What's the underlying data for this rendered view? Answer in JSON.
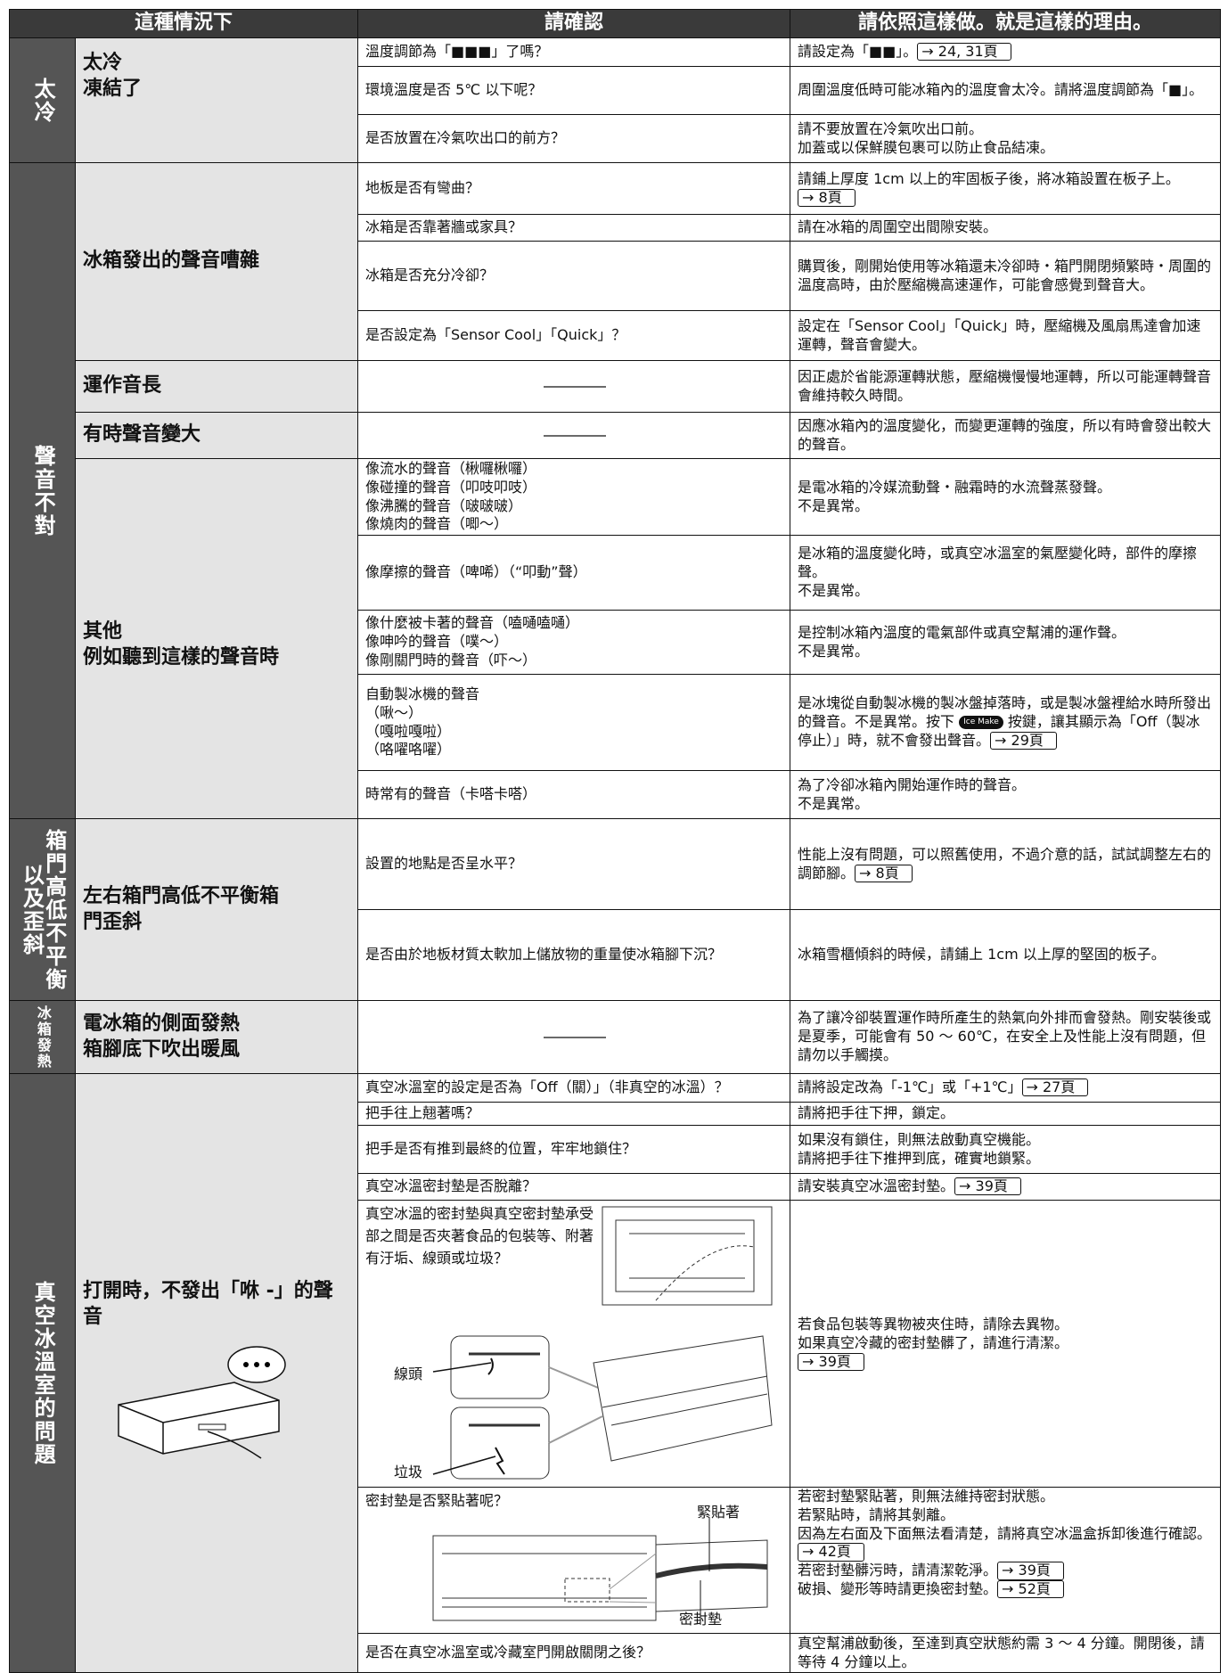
{
  "table": {
    "header": [
      "這種情況下",
      "請確認",
      "請依照這樣做。就是這樣的理由。"
    ],
    "sections": [
      {
        "category": "太冷",
        "groups": [
          {
            "situation": "太冷\n凍結了",
            "rows": [
              {
                "check": "溫度調節為「■■■」了嗎？",
                "action": [
                  {
                    "text": "請設定為「■■」。"
                  },
                  {
                    "ref": "→ 24, 31頁"
                  }
                ]
              },
              {
                "check": "環境溫度是否 5℃ 以下呢？",
                "action": [
                  {
                    "text": "周圍溫度低時可能冰箱內的溫度會太冷。請將溫度調節為「■」。"
                  }
                ]
              },
              {
                "check": "是否放置在冷氣吹出口的前方？",
                "action": [
                  {
                    "text": "請不要放置在冷氣吹出口前。\n加蓋或以保鮮膜包裹可以防止食品結凍。"
                  }
                ]
              }
            ]
          }
        ]
      },
      {
        "category": "聲音不對",
        "groups": [
          {
            "situation": "冰箱發出的聲音嘈雜",
            "rows": [
              {
                "check": "地板是否有彎曲？",
                "action": [
                  {
                    "text": "請鋪上厚度 1cm 以上的牢固板子後，將冰箱設置在板子上。"
                  },
                  {
                    "ref": "→  8頁"
                  }
                ]
              },
              {
                "check": "冰箱是否靠著牆或家具？",
                "action": [
                  {
                    "text": "請在冰箱的周圍空出間隙安裝。"
                  }
                ]
              },
              {
                "check": "冰箱是否充分冷卻？",
                "action": [
                  {
                    "text": "購買後，剛開始使用等冰箱還未冷卻時・箱門開閉頻繁時・周圍的溫度高時，由於壓縮機高速運作，可能會感覺到聲音大。"
                  }
                ]
              },
              {
                "check": "是否設定為「Sensor Cool」「Quick」？",
                "action": [
                  {
                    "text": "設定在「Sensor Cool」「Quick」時，壓縮機及風扇馬達會加速運轉，聲音會變大。"
                  }
                ]
              }
            ]
          },
          {
            "situation": "運作音長",
            "rows": [
              {
                "action": [
                  {
                    "text": "因正處於省能源運轉狀態，壓縮機慢慢地運轉，所以可能運轉聲音會維持較久時間。"
                  }
                ]
              }
            ]
          },
          {
            "situation": "有時聲音變大",
            "rows": [
              {
                "action": [
                  {
                    "text": "因應冰箱內的溫度變化，而變更運轉的強度，所以有時會發出較大的聲音。"
                  }
                ]
              }
            ]
          },
          {
            "situation": "其他\n例如聽到這樣的聲音時",
            "rows": [
              {
                "check": "像流水的聲音（楸囉楸囉）\n像碰撞的聲音（叩吱叩吱）\n像沸騰的聲音（啵啵啵）\n像燒肉的聲音（唧～）",
                "action": [
                  {
                    "text": "是電冰箱的冷媒流動聲・融霜時的水流聲蒸發聲。\n不是異常。"
                  }
                ]
              },
              {
                "check": "像摩擦的聲音（啤唏）（“叩動”聲）",
                "action": [
                  {
                    "text": "是冰箱的溫度變化時，或真空冰溫室的氣壓變化時，部件的摩擦聲。\n不是異常。"
                  }
                ]
              },
              {
                "check": "像什麼被卡著的聲音（嗑嗵嗑嗵）\n像呻吟的聲音（噗～）\n像剛關門時的聲音（吓～）",
                "action": [
                  {
                    "text": "是控制冰箱內溫度的電氣部件或真空幫浦的運作聲。\n不是異常。"
                  }
                ]
              },
              {
                "check": "自動製冰機的聲音\n（啾～）\n（嘎啦嘎啦）\n（咯嚁咯嚁）",
                "action": [
                  {
                    "text": "是冰塊從自動製冰機的製冰盤掉落時，或是製冰盤裡給水時所發出的聲音。不是異常。按下 "
                  },
                  {
                    "icon": "Ice Make"
                  },
                  {
                    "text": " 按鍵，讓其顯示為「Off（製冰停止）」時，就不會發出聲音。"
                  },
                  {
                    "ref": "→ 29頁"
                  }
                ]
              },
              {
                "check": "時常有的聲音（卡嗒卡嗒）",
                "action": [
                  {
                    "text": "為了冷卻冰箱內開始運作時的聲音。\n不是異常。"
                  }
                ]
              }
            ]
          }
        ]
      },
      {
        "category": "箱門高低不平衡\n以及歪斜",
        "groups": [
          {
            "situation": "左右箱門高低不平衡箱\n門歪斜",
            "rows": [
              {
                "check": "設置的地點是否呈水平？",
                "action": [
                  {
                    "text": "性能上沒有問題，可以照舊使用，不過介意的話，試試調整左右的調節腳。"
                  },
                  {
                    "ref": "→  8頁"
                  }
                ]
              },
              {
                "check": "是否由於地板材質太軟加上儲放物的重量使冰箱腳下沉？",
                "action": [
                  {
                    "text": "冰箱雪櫃傾斜的時候，請鋪上 1cm 以上厚的堅固的板子。"
                  }
                ]
              }
            ]
          }
        ]
      },
      {
        "category": "冰箱發熱",
        "groups": [
          {
            "situation": "電冰箱的側面發熱\n箱腳底下吹出暖風",
            "rows": [
              {
                "action": [
                  {
                    "text": "為了讓冷卻裝置運作時所產生的熱氣向外排而會發熱。剛安裝後或是夏季，可能會有 50 ～ 60℃，在安全上及性能上沒有問題，但請勿以手觸摸。"
                  }
                ]
              }
            ]
          }
        ]
      },
      {
        "category": "真空冰溫室的問題",
        "groups": [
          {
            "situation": "打開時，不發出「咻 -」的聲音",
            "rows": [
              {
                "check": "真空冰溫室的設定是否為「Off（關）」（非真空的冰溫）？",
                "action": [
                  {
                    "text": "請將設定改為「-1℃」或「+1℃」"
                  },
                  {
                    "ref": "→ 27頁"
                  }
                ]
              },
              {
                "check": "把手往上翹著嗎？",
                "action": [
                  {
                    "text": "請將把手往下押，鎖定。"
                  }
                ]
              },
              {
                "check": "把手是否有推到最終的位置，牢牢地鎖住？",
                "action": [
                  {
                    "text": "如果沒有鎖住，則無法啟動真空機能。\n請將把手往下推押到底，確實地鎖緊。"
                  }
                ]
              },
              {
                "check": "真空冰溫密封墊是否脫離？",
                "action": [
                  {
                    "text": "請安裝真空冰溫密封墊。"
                  },
                  {
                    "ref": "→ 39頁"
                  }
                ]
              },
              {
                "check": "真空冰溫的密封墊與真空密封墊承受部之間是否夾著食品的包裝等、附著有汙垢、線頭或垃圾？",
                "labels": [
                  "線頭",
                  "垃圾"
                ],
                "action": [
                  {
                    "text": "若食品包裝等異物被夾住時，請除去異物。\n如果真空冷藏的密封墊髒了，請進行清潔。\n"
                  },
                  {
                    "ref": "→ 39頁"
                  }
                ]
              },
              {
                "check": "密封墊是否緊貼著呢？",
                "labels": [
                  "緊貼著",
                  "密封墊"
                ],
                "action": [
                  {
                    "text": "若密封墊緊貼著，則無法維持密封狀態。\n若緊貼時，請將其剝離。\n因為左右面及下面無法看清楚，請將真空冰溫盒拆卸後進行確認。"
                  },
                  {
                    "ref": "→ 42頁"
                  },
                  {
                    "text": "\n若密封墊髒污時，請清潔乾淨。"
                  },
                  {
                    "ref": "→ 39頁"
                  },
                  {
                    "text": "\n破損、變形等時請更換密封墊。"
                  },
                  {
                    "ref": "→ 52頁"
                  }
                ]
              },
              {
                "check": "是否在真空冰溫室或冷藏室門開啟關閉之後？",
                "action": [
                  {
                    "text": "真空幫浦啟動後，至達到真空狀態約需 3 ～ 4 分鐘。開閉後，請等待 4 分鐘以上。"
                  }
                ]
              }
            ]
          }
        ]
      }
    ]
  }
}
